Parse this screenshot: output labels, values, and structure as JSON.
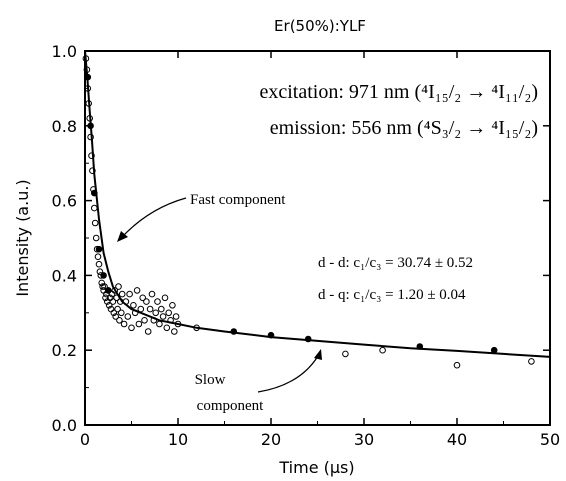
{
  "chart_data": {
    "type": "scatter",
    "title": "Er(50%):YLF",
    "xlabel": "Time (μs)",
    "ylabel": "Intensity (a.u.)",
    "xlim": [
      0,
      50
    ],
    "ylim": [
      0,
      1.0
    ],
    "x_ticks": [
      "0",
      "10",
      "20",
      "30",
      "40",
      "50"
    ],
    "y_ticks": [
      "0.0",
      "0.2",
      "0.4",
      "0.6",
      "0.8",
      "1.0"
    ],
    "grid": false,
    "colors": {
      "data": "#000000",
      "axes": "#000000",
      "background": "#ffffff"
    },
    "series": [
      {
        "kind": "points",
        "marker": "open-circle",
        "x": [
          0.1,
          0.2,
          0.3,
          0.4,
          0.5,
          0.6,
          0.7,
          0.8,
          0.9,
          1.0,
          1.1,
          1.2,
          1.3,
          1.4,
          1.5,
          1.6,
          1.7,
          1.8,
          1.9,
          2.0,
          2.1,
          2.2,
          2.3,
          2.4,
          2.5,
          2.6,
          2.7,
          2.8,
          2.9,
          3.0,
          3.1,
          3.2,
          3.3,
          3.4,
          3.5,
          3.6,
          3.7,
          3.8,
          3.9,
          4.0,
          4.2,
          4.4,
          4.6,
          4.8,
          5.0,
          5.2,
          5.4,
          5.6,
          5.8,
          6.0,
          6.2,
          6.4,
          6.6,
          6.8,
          7.0,
          7.2,
          7.4,
          7.6,
          7.8,
          8.0,
          8.2,
          8.4,
          8.6,
          8.8,
          9.0,
          9.2,
          9.4,
          9.6,
          9.8,
          10.0,
          12.0,
          28.0,
          32.0,
          40.0,
          48.0
        ],
        "y": [
          0.98,
          0.95,
          0.9,
          0.86,
          0.82,
          0.77,
          0.72,
          0.68,
          0.63,
          0.58,
          0.54,
          0.5,
          0.47,
          0.45,
          0.43,
          0.41,
          0.4,
          0.38,
          0.37,
          0.36,
          0.37,
          0.34,
          0.35,
          0.33,
          0.36,
          0.32,
          0.34,
          0.31,
          0.35,
          0.33,
          0.3,
          0.36,
          0.29,
          0.34,
          0.31,
          0.37,
          0.28,
          0.33,
          0.3,
          0.35,
          0.27,
          0.33,
          0.29,
          0.35,
          0.26,
          0.32,
          0.3,
          0.36,
          0.27,
          0.31,
          0.34,
          0.28,
          0.33,
          0.25,
          0.31,
          0.35,
          0.28,
          0.3,
          0.33,
          0.27,
          0.31,
          0.29,
          0.34,
          0.26,
          0.3,
          0.28,
          0.32,
          0.25,
          0.29,
          0.27,
          0.26,
          0.19,
          0.2,
          0.16,
          0.17
        ]
      },
      {
        "kind": "points",
        "marker": "filled-circle",
        "x": [
          0.3,
          0.6,
          1.0,
          1.5,
          2.0,
          2.5,
          16.0,
          20.0,
          24.0,
          36.0,
          44.0
        ],
        "y": [
          0.93,
          0.8,
          0.62,
          0.47,
          0.4,
          0.36,
          0.25,
          0.24,
          0.23,
          0.21,
          0.2
        ]
      },
      {
        "kind": "fit-line",
        "x": [
          0,
          0.25,
          0.5,
          0.75,
          1.0,
          1.5,
          2.0,
          2.5,
          3,
          4,
          5,
          6,
          8,
          10,
          12,
          15,
          20,
          25,
          30,
          35,
          40,
          45,
          50
        ],
        "y": [
          1.0,
          0.93,
          0.84,
          0.76,
          0.67,
          0.55,
          0.46,
          0.41,
          0.37,
          0.33,
          0.31,
          0.3,
          0.28,
          0.27,
          0.26,
          0.25,
          0.235,
          0.225,
          0.215,
          0.205,
          0.198,
          0.19,
          0.182
        ]
      }
    ],
    "annotations": {
      "excitation": "excitation: 971 nm (⁴I₁₅/₂ → ⁴I₁₁/₂)",
      "emission": "emission: 556 nm (⁴S₃/₂ → ⁴I₁₅/₂)",
      "fast": "Fast component",
      "slow_line1": "Slow",
      "slow_line2": "component",
      "fit_dd": "d - d: c₁/c₃ = 30.74 ± 0.52",
      "fit_dq": "d - q: c₁/c₃ = 1.20 ± 0.04"
    }
  }
}
